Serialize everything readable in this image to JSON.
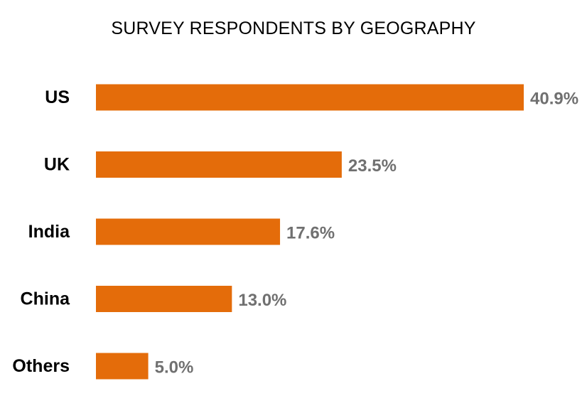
{
  "colors": {
    "bar": "#E46C0A",
    "value_label": "#707070",
    "category_label": "#000000"
  },
  "chart_data": {
    "type": "bar",
    "orientation": "horizontal",
    "title": "SURVEY RESPONDENTS BY GEOGRAPHY",
    "categories": [
      "US",
      "UK",
      "India",
      "China",
      "Others"
    ],
    "values": [
      40.9,
      23.5,
      17.6,
      13.0,
      5.0
    ],
    "value_labels": [
      "40.9%",
      "23.5%",
      "17.6%",
      "13.0%",
      "5.0%"
    ],
    "xlim": [
      0,
      40.9
    ],
    "grid": false,
    "legend": "none"
  }
}
